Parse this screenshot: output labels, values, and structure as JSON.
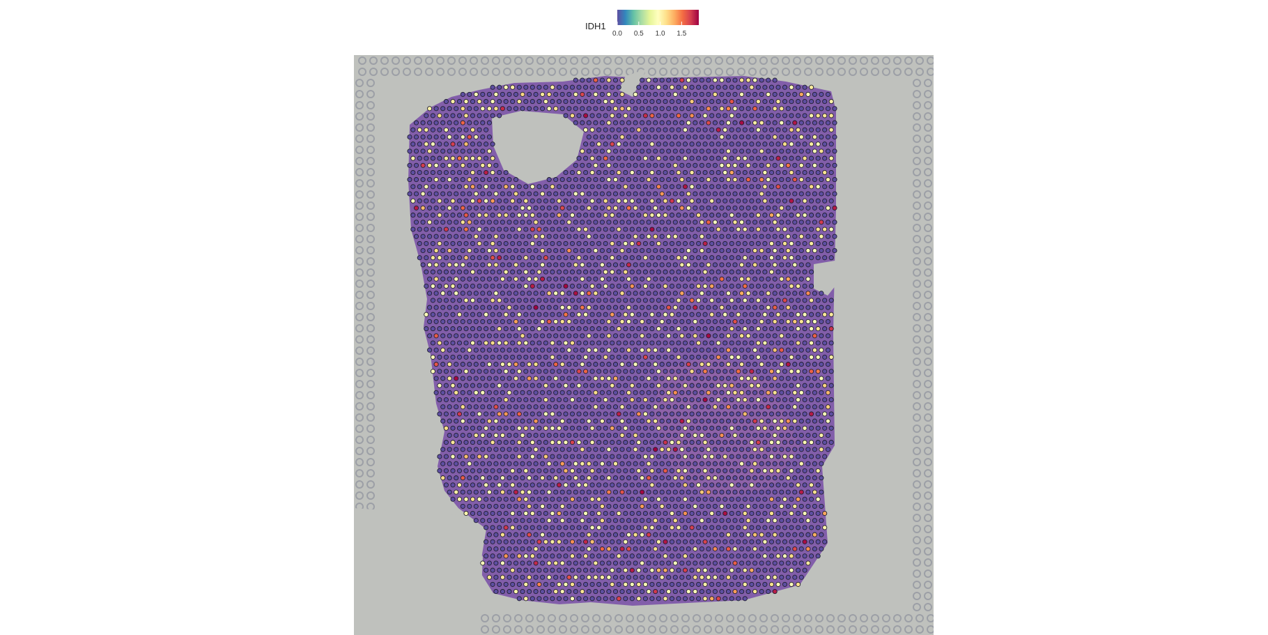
{
  "chart_data": {
    "type": "scatter",
    "title": "",
    "xlabel": "",
    "ylabel": "",
    "background": "H&E stained tissue section image",
    "legend": {
      "title": "IDH1",
      "position": "top",
      "ticks": [
        "0.0",
        "0.5",
        "1.0",
        "1.5"
      ],
      "tick_values": [
        0.0,
        0.5,
        1.0,
        1.5
      ],
      "range": [
        0.0,
        1.9
      ]
    },
    "color_scale": {
      "name": "Spectral (reversed)",
      "stops": [
        "#5e4fa2",
        "#3288bd",
        "#66c2a5",
        "#abdda4",
        "#e6f598",
        "#ffffbf",
        "#fee08b",
        "#fdae61",
        "#f46d43",
        "#d53e4f",
        "#9e0142"
      ]
    },
    "spots": {
      "description": "Visium spots over the tissue; ~75% IDH1 = 0 (purple), remainder 0.9-1.9",
      "grid_columns": 64,
      "grid_rows": 74,
      "seed": 7,
      "fraction_zero": 0.72,
      "fraction_mid": 0.2,
      "nonzero_range": [
        0.9,
        1.9
      ]
    }
  }
}
